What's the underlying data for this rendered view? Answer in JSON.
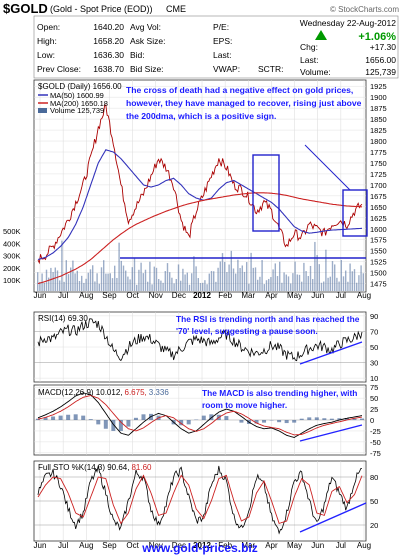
{
  "header": {
    "symbol": "$GOLD",
    "description": "(Gold - Spot Price (EOD))",
    "exchange": "CME",
    "date": "Wednesday  22-Aug-2012",
    "watermark": "© StockCharts.com",
    "change_pct": "+1.06%",
    "fields": [
      {
        "label": "Open:",
        "value": "1640.20"
      },
      {
        "label": "High:",
        "value": "1658.20"
      },
      {
        "label": "Low:",
        "value": "1636.30"
      },
      {
        "label": "Prev Close:",
        "value": "1638.70"
      }
    ],
    "mid_labels": [
      "Avg Vol:",
      "Ask Size:",
      "Bid:",
      "Bid Size:"
    ],
    "right_labels": [
      "P/E:",
      "EPS:",
      "Last:",
      "VWAP:"
    ],
    "sctr_label": "SCTR:",
    "chg_label": "Chg:",
    "chg_value": "+17.30",
    "last_label": "Last:",
    "last_value": "1656.00",
    "volume_label": "Volume:",
    "volume_value": "125,739"
  },
  "legend": {
    "main": "$GOLD (Daily) 1656.00",
    "ma50": "MA(50) 1600.99",
    "ma200": "MA(200) 1650.18",
    "volume": "Volume 125,739"
  },
  "annotations": {
    "price": "The cross of death had a negative effect on gold prices, however, they have managed to recover, rising just above the 200dma, which is a positive sign.",
    "rsi": "The RSI is trending north and has reached the '70' level, suggesting a pause soon.",
    "macd": "The MACD is also trending higher, with room to move higher.",
    "footer_url": "www.gold-prices.biz"
  },
  "panel_labels": {
    "rsi": "RSI(14) 69.30",
    "macd_prefix": "MACD(12,26,9) 10.012,",
    "macd_signal": "6.675,",
    "macd_hist": "3.336",
    "sto_prefix": "Full STO %K(14,3) 90.64,",
    "sto_d": "81.60"
  },
  "colors": {
    "annotation_text": "#1a1aff",
    "box": "#2222cc",
    "ma50": "#3333bb",
    "ma200": "#cc2222",
    "price": "#aa0000",
    "volume": "#4a6a9a",
    "positive": "#009900",
    "url": "#1a1aff"
  },
  "chart_data": [
    {
      "type": "line",
      "title": "$GOLD (Daily) 1656.00",
      "months": [
        "Jun",
        "Jul",
        "Aug",
        "Sep",
        "Oct",
        "Nov",
        "Dec",
        "2012",
        "Feb",
        "Mar",
        "Apr",
        "May",
        "Jun",
        "Jul",
        "Aug"
      ],
      "price_ticks": [
        1475,
        1500,
        1525,
        1550,
        1575,
        1600,
        1625,
        1650,
        1675,
        1700,
        1725,
        1750,
        1775,
        1800,
        1825,
        1850,
        1875,
        1900,
        1925
      ],
      "volume_ticks": [
        "100K",
        "200K",
        "300K",
        "400K",
        "500K"
      ],
      "ylim": [
        1465,
        1930
      ],
      "series": [
        {
          "name": "$GOLD (Daily) 1656.00",
          "values": [
            1530,
            1540,
            1560,
            1590,
            1620,
            1660,
            1700,
            1760,
            1830,
            1880,
            1800,
            1700,
            1620,
            1650,
            1680,
            1720,
            1760,
            1740,
            1700,
            1620,
            1580,
            1640,
            1680,
            1720,
            1760,
            1740,
            1700,
            1690,
            1670,
            1640,
            1660,
            1640,
            1600,
            1560,
            1590,
            1580,
            1610,
            1600,
            1590,
            1610,
            1620,
            1610,
            1640,
            1656
          ]
        },
        {
          "name": "MA(50) 1600.99",
          "values": [
            1530,
            1535,
            1545,
            1560,
            1580,
            1610,
            1650,
            1700,
            1750,
            1780,
            1775,
            1760,
            1740,
            1720,
            1700,
            1695,
            1700,
            1710,
            1715,
            1700,
            1680,
            1670,
            1665,
            1670,
            1690,
            1705,
            1710,
            1700,
            1690,
            1680,
            1670,
            1660,
            1645,
            1625,
            1605,
            1595,
            1590,
            1592,
            1595,
            1597,
            1598,
            1599,
            1600,
            1601
          ]
        },
        {
          "name": "MA(200) 1650.18",
          "values": [
            1475,
            1480,
            1486,
            1492,
            1500,
            1508,
            1518,
            1530,
            1545,
            1560,
            1575,
            1588,
            1600,
            1610,
            1618,
            1626,
            1633,
            1640,
            1646,
            1652,
            1657,
            1661,
            1665,
            1668,
            1671,
            1674,
            1677,
            1679,
            1681,
            1682,
            1682,
            1681,
            1679,
            1676,
            1672,
            1668,
            1665,
            1662,
            1659,
            1656,
            1654,
            1652,
            1651,
            1650
          ]
        }
      ]
    },
    {
      "type": "line",
      "title": "RSI(14) 69.30",
      "ticks": [
        10,
        30,
        50,
        70,
        90
      ],
      "ylim": [
        5,
        95
      ],
      "series": [
        {
          "name": "RSI(14) 69.30",
          "values": [
            55,
            62,
            60,
            68,
            72,
            70,
            78,
            82,
            80,
            65,
            45,
            38,
            50,
            58,
            64,
            60,
            52,
            44,
            40,
            48,
            56,
            60,
            58,
            54,
            62,
            66,
            58,
            50,
            45,
            42,
            46,
            52,
            48,
            40,
            36,
            42,
            48,
            52,
            50,
            46,
            54,
            58,
            62,
            69.3
          ]
        }
      ]
    },
    {
      "type": "line",
      "title": "MACD(12,26,9) 10.012, 6.675, 3.336",
      "ticks": [
        -75,
        -50,
        -25,
        0,
        25,
        50,
        75
      ],
      "ylim": [
        -80,
        80
      ],
      "series": [
        {
          "name": "MACD",
          "values": [
            5,
            12,
            20,
            30,
            42,
            55,
            62,
            58,
            40,
            15,
            -10,
            -30,
            -35,
            -20,
            -5,
            8,
            15,
            10,
            -5,
            -20,
            -30,
            -25,
            -10,
            5,
            18,
            25,
            20,
            8,
            -5,
            -15,
            -20,
            -18,
            -25,
            -35,
            -40,
            -30,
            -20,
            -12,
            -8,
            -5,
            0,
            4,
            7,
            10
          ]
        },
        {
          "name": "Signal",
          "values": [
            2,
            6,
            12,
            20,
            30,
            42,
            52,
            56,
            50,
            35,
            15,
            -5,
            -20,
            -25,
            -18,
            -6,
            5,
            10,
            5,
            -8,
            -20,
            -26,
            -20,
            -8,
            6,
            16,
            20,
            14,
            4,
            -7,
            -14,
            -17,
            -20,
            -28,
            -34,
            -33,
            -26,
            -18,
            -12,
            -8,
            -4,
            0,
            4,
            6.7
          ]
        }
      ]
    },
    {
      "type": "line",
      "title": "Full STO %K(14,3) 90.64, 81.60",
      "ticks": [
        20,
        50,
        80
      ],
      "ylim": [
        0,
        100
      ],
      "series": [
        {
          "name": "%K",
          "values": [
            60,
            80,
            85,
            70,
            40,
            20,
            35,
            75,
            90,
            60,
            25,
            15,
            50,
            85,
            80,
            40,
            20,
            45,
            80,
            88,
            55,
            25,
            30,
            70,
            90,
            75,
            30,
            15,
            40,
            80,
            70,
            30,
            10,
            35,
            75,
            85,
            50,
            20,
            45,
            80,
            60,
            40,
            75,
            90.64
          ]
        },
        {
          "name": "%D",
          "values": [
            55,
            70,
            80,
            78,
            60,
            35,
            30,
            55,
            80,
            78,
            45,
            22,
            35,
            65,
            82,
            60,
            32,
            35,
            60,
            82,
            70,
            40,
            28,
            50,
            78,
            82,
            50,
            25,
            30,
            60,
            75,
            50,
            22,
            25,
            55,
            78,
            70,
            35,
            32,
            62,
            68,
            48,
            58,
            81.6
          ]
        }
      ]
    }
  ]
}
